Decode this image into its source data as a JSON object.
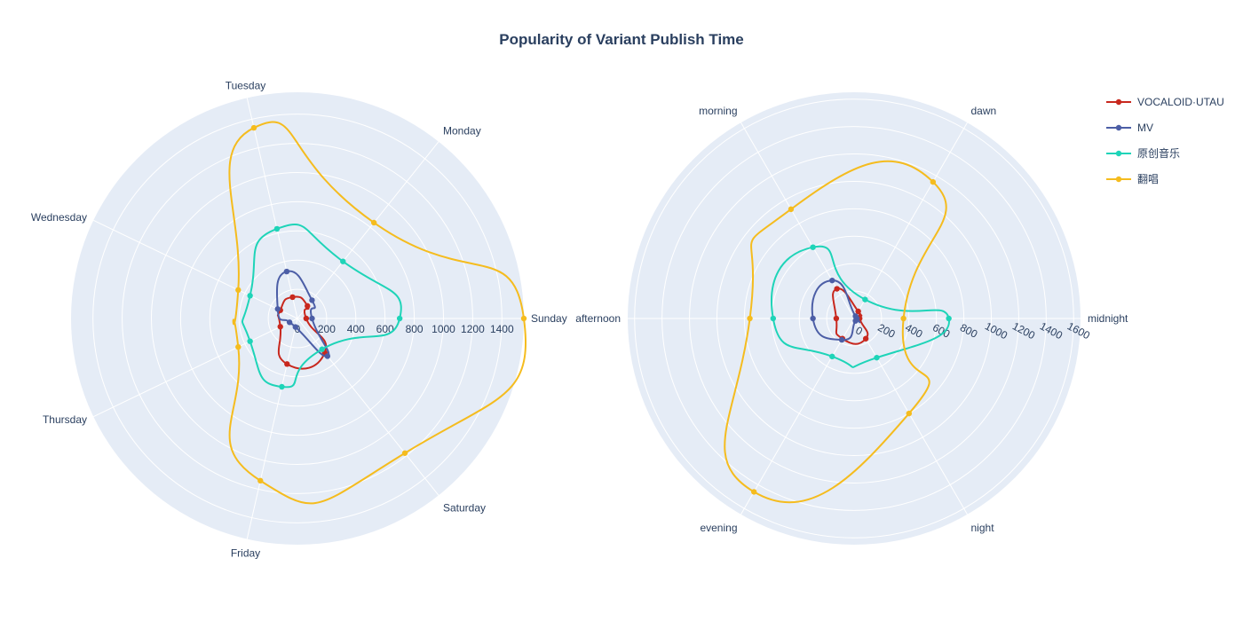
{
  "title": "Popularity of Variant Publish Time",
  "colors": {
    "polar_bg": "#e5ecf6",
    "grid": "#ffffff",
    "text": "#2a3f5f"
  },
  "legend": {
    "placement": "top-right",
    "entries": [
      "VOCALOID·UTAU",
      "MV",
      "原创音乐",
      "翻唱"
    ]
  },
  "chart_data": [
    {
      "type": "polar-line",
      "angular_direction": "counterclockwise",
      "angular_start": "right",
      "categories": [
        "Sunday",
        "Monday",
        "Tuesday",
        "Wednesday",
        "Thursday",
        "Friday",
        "Saturday"
      ],
      "radial_range": [
        0,
        1550
      ],
      "radial_ticks": [
        0,
        200,
        400,
        600,
        800,
        1000,
        1200,
        1400
      ],
      "grid": true,
      "line_shape": "spline",
      "series": [
        {
          "name": "VOCALOID·UTAU",
          "color": "#c8281e",
          "values": [
            60,
            110,
            150,
            130,
            130,
            320,
            300
          ]
        },
        {
          "name": "MV",
          "color": "#4c5ea6",
          "values": [
            100,
            160,
            330,
            150,
            60,
            60,
            330
          ]
        },
        {
          "name": "原创音乐",
          "color": "#1ed4b8",
          "values": [
            700,
            500,
            630,
            360,
            360,
            480,
            270
          ]
        },
        {
          "name": "翻唱",
          "color": "#f5bc1e",
          "values": [
            1550,
            840,
            1340,
            450,
            450,
            1140,
            1180
          ]
        }
      ]
    },
    {
      "type": "polar-line",
      "angular_direction": "counterclockwise",
      "angular_start": "right",
      "categories": [
        "midnight",
        "dawn",
        "morning",
        "afternoon",
        "evening",
        "night"
      ],
      "radial_range": [
        0,
        1650
      ],
      "radial_ticks": [
        0,
        200,
        400,
        600,
        800,
        1000,
        1200,
        1400,
        1600
      ],
      "grid": true,
      "line_shape": "spline",
      "series": [
        {
          "name": "VOCALOID·UTAU",
          "color": "#c8281e",
          "values": [
            40,
            60,
            250,
            130,
            170,
            170
          ]
        },
        {
          "name": "MV",
          "color": "#4c5ea6",
          "values": [
            20,
            20,
            320,
            300,
            180,
            20
          ]
        },
        {
          "name": "原创音乐",
          "color": "#1ed4b8",
          "values": [
            690,
            160,
            600,
            590,
            320,
            330
          ]
        },
        {
          "name": "翻唱",
          "color": "#f5bc1e",
          "values": [
            360,
            1150,
            920,
            760,
            1460,
            800
          ]
        }
      ]
    }
  ]
}
